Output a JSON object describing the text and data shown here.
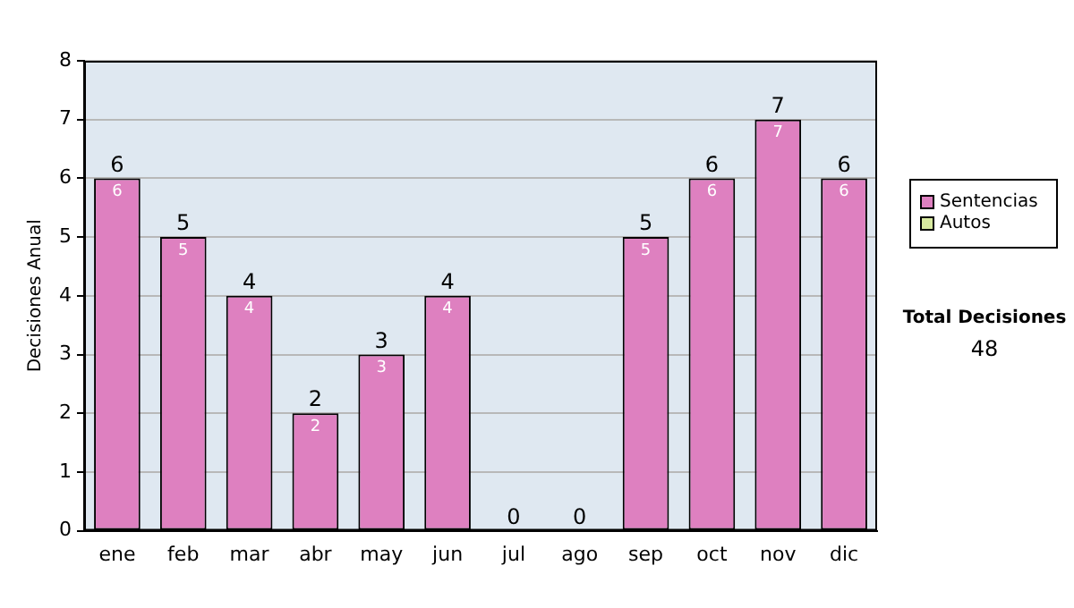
{
  "chart_data": {
    "type": "bar",
    "stacked": true,
    "ylabel": "Decisiones Anual",
    "categories": [
      "ene",
      "feb",
      "mar",
      "abr",
      "may",
      "jun",
      "jul",
      "ago",
      "sep",
      "oct",
      "nov",
      "dic"
    ],
    "series": [
      {
        "name": "Sentencias",
        "color": "#de80c0",
        "values": [
          6,
          5,
          4,
          2,
          3,
          4,
          0,
          0,
          5,
          6,
          7,
          6
        ],
        "value_labels": [
          "6",
          "5",
          "4",
          "2",
          "3",
          "4",
          null,
          null,
          "5",
          "6",
          "7",
          "6"
        ]
      },
      {
        "name": "Autos",
        "color": "#d8eaa0",
        "values": [
          0,
          0,
          0,
          0,
          0,
          0,
          0,
          0,
          0,
          0,
          0,
          0
        ]
      }
    ],
    "totals": [
      "6",
      "5",
      "4",
      "2",
      "3",
      "4",
      "0",
      "0",
      "5",
      "6",
      "7",
      "6"
    ],
    "ylim": [
      0,
      8
    ],
    "yticks": [
      0,
      1,
      2,
      3,
      4,
      5,
      6,
      7,
      8
    ],
    "grid": "y",
    "legend": "right",
    "annotations": [
      "Total Decisiones",
      "48"
    ]
  }
}
